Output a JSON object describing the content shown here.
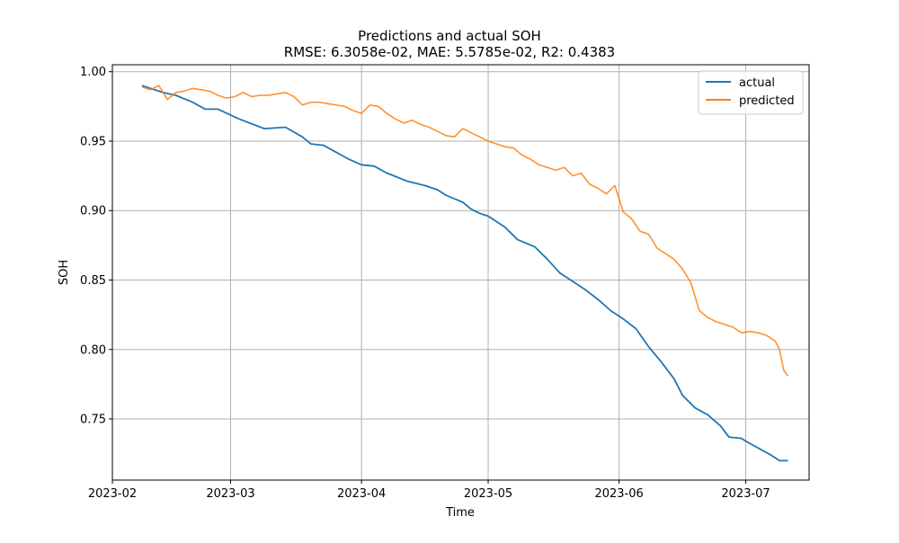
{
  "chart_data": {
    "type": "line",
    "title": "Predictions and actual SOH",
    "subtitle": "RMSE: 6.3058e-02, MAE: 5.5785e-02, R2: 0.4383",
    "xlabel": "Time",
    "ylabel": "SOH",
    "xlim": [
      "2023-02-01",
      "2023-07-16"
    ],
    "ylim": [
      0.706,
      1.005
    ],
    "x_ticks": [
      "2023-02-01",
      "2023-03-01",
      "2023-04-01",
      "2023-05-01",
      "2023-06-01",
      "2023-07-01"
    ],
    "x_tick_labels": [
      "2023-02",
      "2023-03",
      "2023-04",
      "2023-05",
      "2023-06",
      "2023-07"
    ],
    "y_ticks": [
      0.75,
      0.8,
      0.85,
      0.9,
      0.95,
      1.0
    ],
    "y_tick_labels": [
      "0.75",
      "0.80",
      "0.85",
      "0.90",
      "0.95",
      "1.00"
    ],
    "grid": true,
    "legend_position": "top-right",
    "series": [
      {
        "name": "actual",
        "color": "#1f77b4",
        "x": [
          "2023-02-08",
          "2023-02-13",
          "2023-02-16",
          "2023-02-20",
          "2023-02-23",
          "2023-02-26",
          "2023-03-03",
          "2023-03-09",
          "2023-03-14",
          "2023-03-18",
          "2023-03-20",
          "2023-03-23",
          "2023-03-26",
          "2023-03-29",
          "2023-04-01",
          "2023-04-04",
          "2023-04-07",
          "2023-04-12",
          "2023-04-16",
          "2023-04-19",
          "2023-04-21",
          "2023-04-25",
          "2023-04-27",
          "2023-04-29",
          "2023-05-01",
          "2023-05-05",
          "2023-05-08",
          "2023-05-12",
          "2023-05-15",
          "2023-05-18",
          "2023-05-21",
          "2023-05-24",
          "2023-05-27",
          "2023-05-30",
          "2023-06-02",
          "2023-06-05",
          "2023-06-08",
          "2023-06-11",
          "2023-06-14",
          "2023-06-16",
          "2023-06-19",
          "2023-06-22",
          "2023-06-25",
          "2023-06-27",
          "2023-06-30",
          "2023-07-01",
          "2023-07-04",
          "2023-07-07",
          "2023-07-09",
          "2023-07-11"
        ],
        "values": [
          0.99,
          0.985,
          0.983,
          0.978,
          0.973,
          0.973,
          0.966,
          0.959,
          0.96,
          0.953,
          0.948,
          0.947,
          0.942,
          0.937,
          0.933,
          0.932,
          0.927,
          0.921,
          0.918,
          0.915,
          0.911,
          0.906,
          0.901,
          0.898,
          0.896,
          0.888,
          0.879,
          0.874,
          0.865,
          0.855,
          0.849,
          0.843,
          0.836,
          0.828,
          0.822,
          0.815,
          0.802,
          0.791,
          0.779,
          0.767,
          0.758,
          0.753,
          0.745,
          0.737,
          0.736,
          0.734,
          0.729,
          0.724,
          0.72,
          0.72
        ]
      },
      {
        "name": "predicted",
        "color": "#ff7f0e",
        "x": [
          "2023-02-08",
          "2023-02-10",
          "2023-02-12",
          "2023-02-14",
          "2023-02-16",
          "2023-02-18",
          "2023-02-20",
          "2023-02-22",
          "2023-02-24",
          "2023-02-26",
          "2023-02-28",
          "2023-03-02",
          "2023-03-04",
          "2023-03-06",
          "2023-03-08",
          "2023-03-10",
          "2023-03-12",
          "2023-03-14",
          "2023-03-16",
          "2023-03-18",
          "2023-03-20",
          "2023-03-22",
          "2023-03-24",
          "2023-03-26",
          "2023-03-28",
          "2023-03-30",
          "2023-04-01",
          "2023-04-03",
          "2023-04-05",
          "2023-04-07",
          "2023-04-09",
          "2023-04-11",
          "2023-04-13",
          "2023-04-15",
          "2023-04-17",
          "2023-04-19",
          "2023-04-21",
          "2023-04-23",
          "2023-04-25",
          "2023-04-27",
          "2023-04-29",
          "2023-05-01",
          "2023-05-03",
          "2023-05-05",
          "2023-05-07",
          "2023-05-09",
          "2023-05-11",
          "2023-05-13",
          "2023-05-15",
          "2023-05-17",
          "2023-05-19",
          "2023-05-21",
          "2023-05-23",
          "2023-05-25",
          "2023-05-27",
          "2023-05-29",
          "2023-05-31",
          "2023-06-02",
          "2023-06-04",
          "2023-06-06",
          "2023-06-08",
          "2023-06-10",
          "2023-06-12",
          "2023-06-14",
          "2023-06-16",
          "2023-06-18",
          "2023-06-20",
          "2023-06-22",
          "2023-06-24",
          "2023-06-26",
          "2023-06-28",
          "2023-06-30",
          "2023-07-02",
          "2023-07-04",
          "2023-07-06",
          "2023-07-08",
          "2023-07-09",
          "2023-07-10",
          "2023-07-11"
        ],
        "values": [
          0.989,
          0.987,
          0.99,
          0.98,
          0.985,
          0.986,
          0.988,
          0.987,
          0.986,
          0.983,
          0.981,
          0.982,
          0.985,
          0.982,
          0.983,
          0.983,
          0.984,
          0.985,
          0.982,
          0.976,
          0.978,
          0.978,
          0.977,
          0.976,
          0.975,
          0.972,
          0.97,
          0.976,
          0.975,
          0.97,
          0.966,
          0.963,
          0.965,
          0.962,
          0.96,
          0.957,
          0.954,
          0.953,
          0.959,
          0.956,
          0.953,
          0.95,
          0.948,
          0.946,
          0.945,
          0.94,
          0.937,
          0.933,
          0.931,
          0.929,
          0.931,
          0.925,
          0.927,
          0.919,
          0.916,
          0.912,
          0.918,
          0.899,
          0.894,
          0.885,
          0.883,
          0.873,
          0.869,
          0.865,
          0.858,
          0.848,
          0.828,
          0.823,
          0.82,
          0.818,
          0.816,
          0.812,
          0.813,
          0.812,
          0.81,
          0.806,
          0.8,
          0.785,
          0.781
        ]
      }
    ]
  }
}
